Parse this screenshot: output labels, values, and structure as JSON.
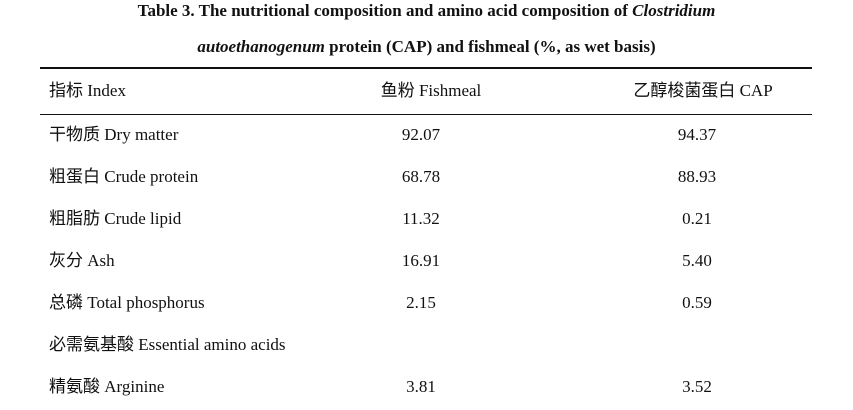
{
  "caption": {
    "line1_prefix": "Table 3. The nutritional composition and amino acid composition of ",
    "line1_italic": "Clostridium",
    "line2_italic": "autoethanogenum",
    "line2_rest": " protein (CAP) and fishmeal (%, as wet basis)"
  },
  "table": {
    "headers": {
      "index": "指标 Index",
      "fishmeal": "鱼粉 Fishmeal",
      "cap": "乙醇梭菌蛋白 CAP"
    },
    "rows": [
      {
        "label": "干物质 Dry matter",
        "fishmeal": "92.07",
        "cap": "94.37"
      },
      {
        "label": "粗蛋白 Crude protein",
        "fishmeal": "68.78",
        "cap": "88.93"
      },
      {
        "label": "粗脂肪 Crude lipid",
        "fishmeal": "11.32",
        "cap": "0.21"
      },
      {
        "label": "灰分 Ash",
        "fishmeal": "16.91",
        "cap": "5.40"
      },
      {
        "label": "总磷 Total phosphorus",
        "fishmeal": "2.15",
        "cap": "0.59"
      },
      {
        "label": "必需氨基酸 Essential amino acids",
        "fishmeal": "",
        "cap": ""
      },
      {
        "label": "精氨酸 Arginine",
        "fishmeal": "3.81",
        "cap": "3.52"
      }
    ]
  }
}
